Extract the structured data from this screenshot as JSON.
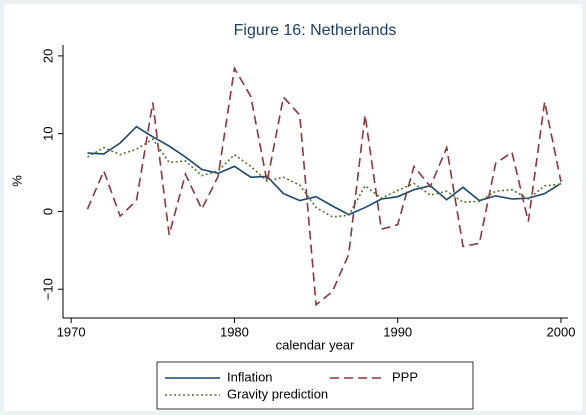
{
  "chart_data": {
    "type": "line",
    "title": "Figure 16: Netherlands",
    "x_label": "calendar year",
    "y_label": "%",
    "x": [
      1971,
      1972,
      1973,
      1974,
      1975,
      1976,
      1977,
      1978,
      1979,
      1980,
      1981,
      1982,
      1983,
      1984,
      1985,
      1986,
      1987,
      1988,
      1989,
      1990,
      1991,
      1992,
      1993,
      1994,
      1995,
      1996,
      1997,
      1998,
      1999,
      2000
    ],
    "series": [
      {
        "name": "Inflation",
        "color": "#1a476f",
        "style": "solid",
        "values": [
          7.5,
          7.4,
          8.8,
          10.9,
          9.6,
          8.4,
          7.0,
          5.4,
          4.9,
          5.8,
          4.4,
          4.5,
          2.3,
          1.4,
          1.9,
          0.7,
          -0.4,
          0.5,
          1.6,
          1.9,
          2.8,
          3.3,
          1.5,
          3.1,
          1.4,
          2.0,
          1.6,
          1.7,
          2.3,
          3.6
        ]
      },
      {
        "name": "PPP",
        "color": "#90353b",
        "style": "dash",
        "values": [
          0.3,
          5.2,
          -0.6,
          1.4,
          14,
          -3,
          4.8,
          0.3,
          4.5,
          18.4,
          14.8,
          3.8,
          14.7,
          12.4,
          -12,
          -10.3,
          -5.5,
          12.4,
          -2.3,
          -1.7,
          5.8,
          3.2,
          8.2,
          -4.5,
          -4.1,
          6.2,
          7.6,
          -1.3,
          14.1,
          3.8
        ]
      },
      {
        "name": "Gravity prediction",
        "color": "#55752f",
        "style": "dot",
        "values": [
          7.0,
          8.2,
          7.3,
          8.0,
          9.3,
          6.3,
          6.5,
          4.6,
          5.2,
          7.3,
          5.8,
          3.9,
          4.4,
          3.4,
          0.5,
          -0.7,
          -0.5,
          3.3,
          1.7,
          2.7,
          3.6,
          2.1,
          2.6,
          1.2,
          1.3,
          2.6,
          2.8,
          1.6,
          3.3,
          3.5
        ]
      }
    ],
    "xlim": [
      1969.5,
      2000.43
    ],
    "xticks": [
      1970,
      1980,
      1990,
      2000
    ],
    "ylim": [
      -13.7,
      21.4
    ],
    "yticks": [
      {
        "value": -10,
        "label": "−10"
      },
      0,
      10,
      20
    ],
    "grid": false,
    "legend": "bottom"
  }
}
